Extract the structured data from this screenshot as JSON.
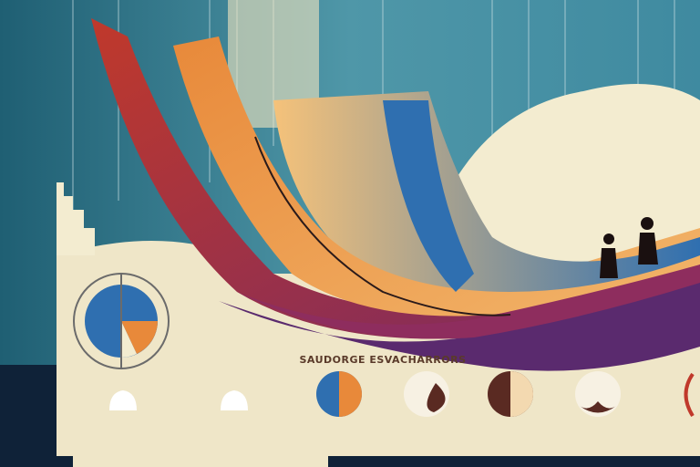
{
  "heading": "SAUDORGE ESVACHARRORS"
}
